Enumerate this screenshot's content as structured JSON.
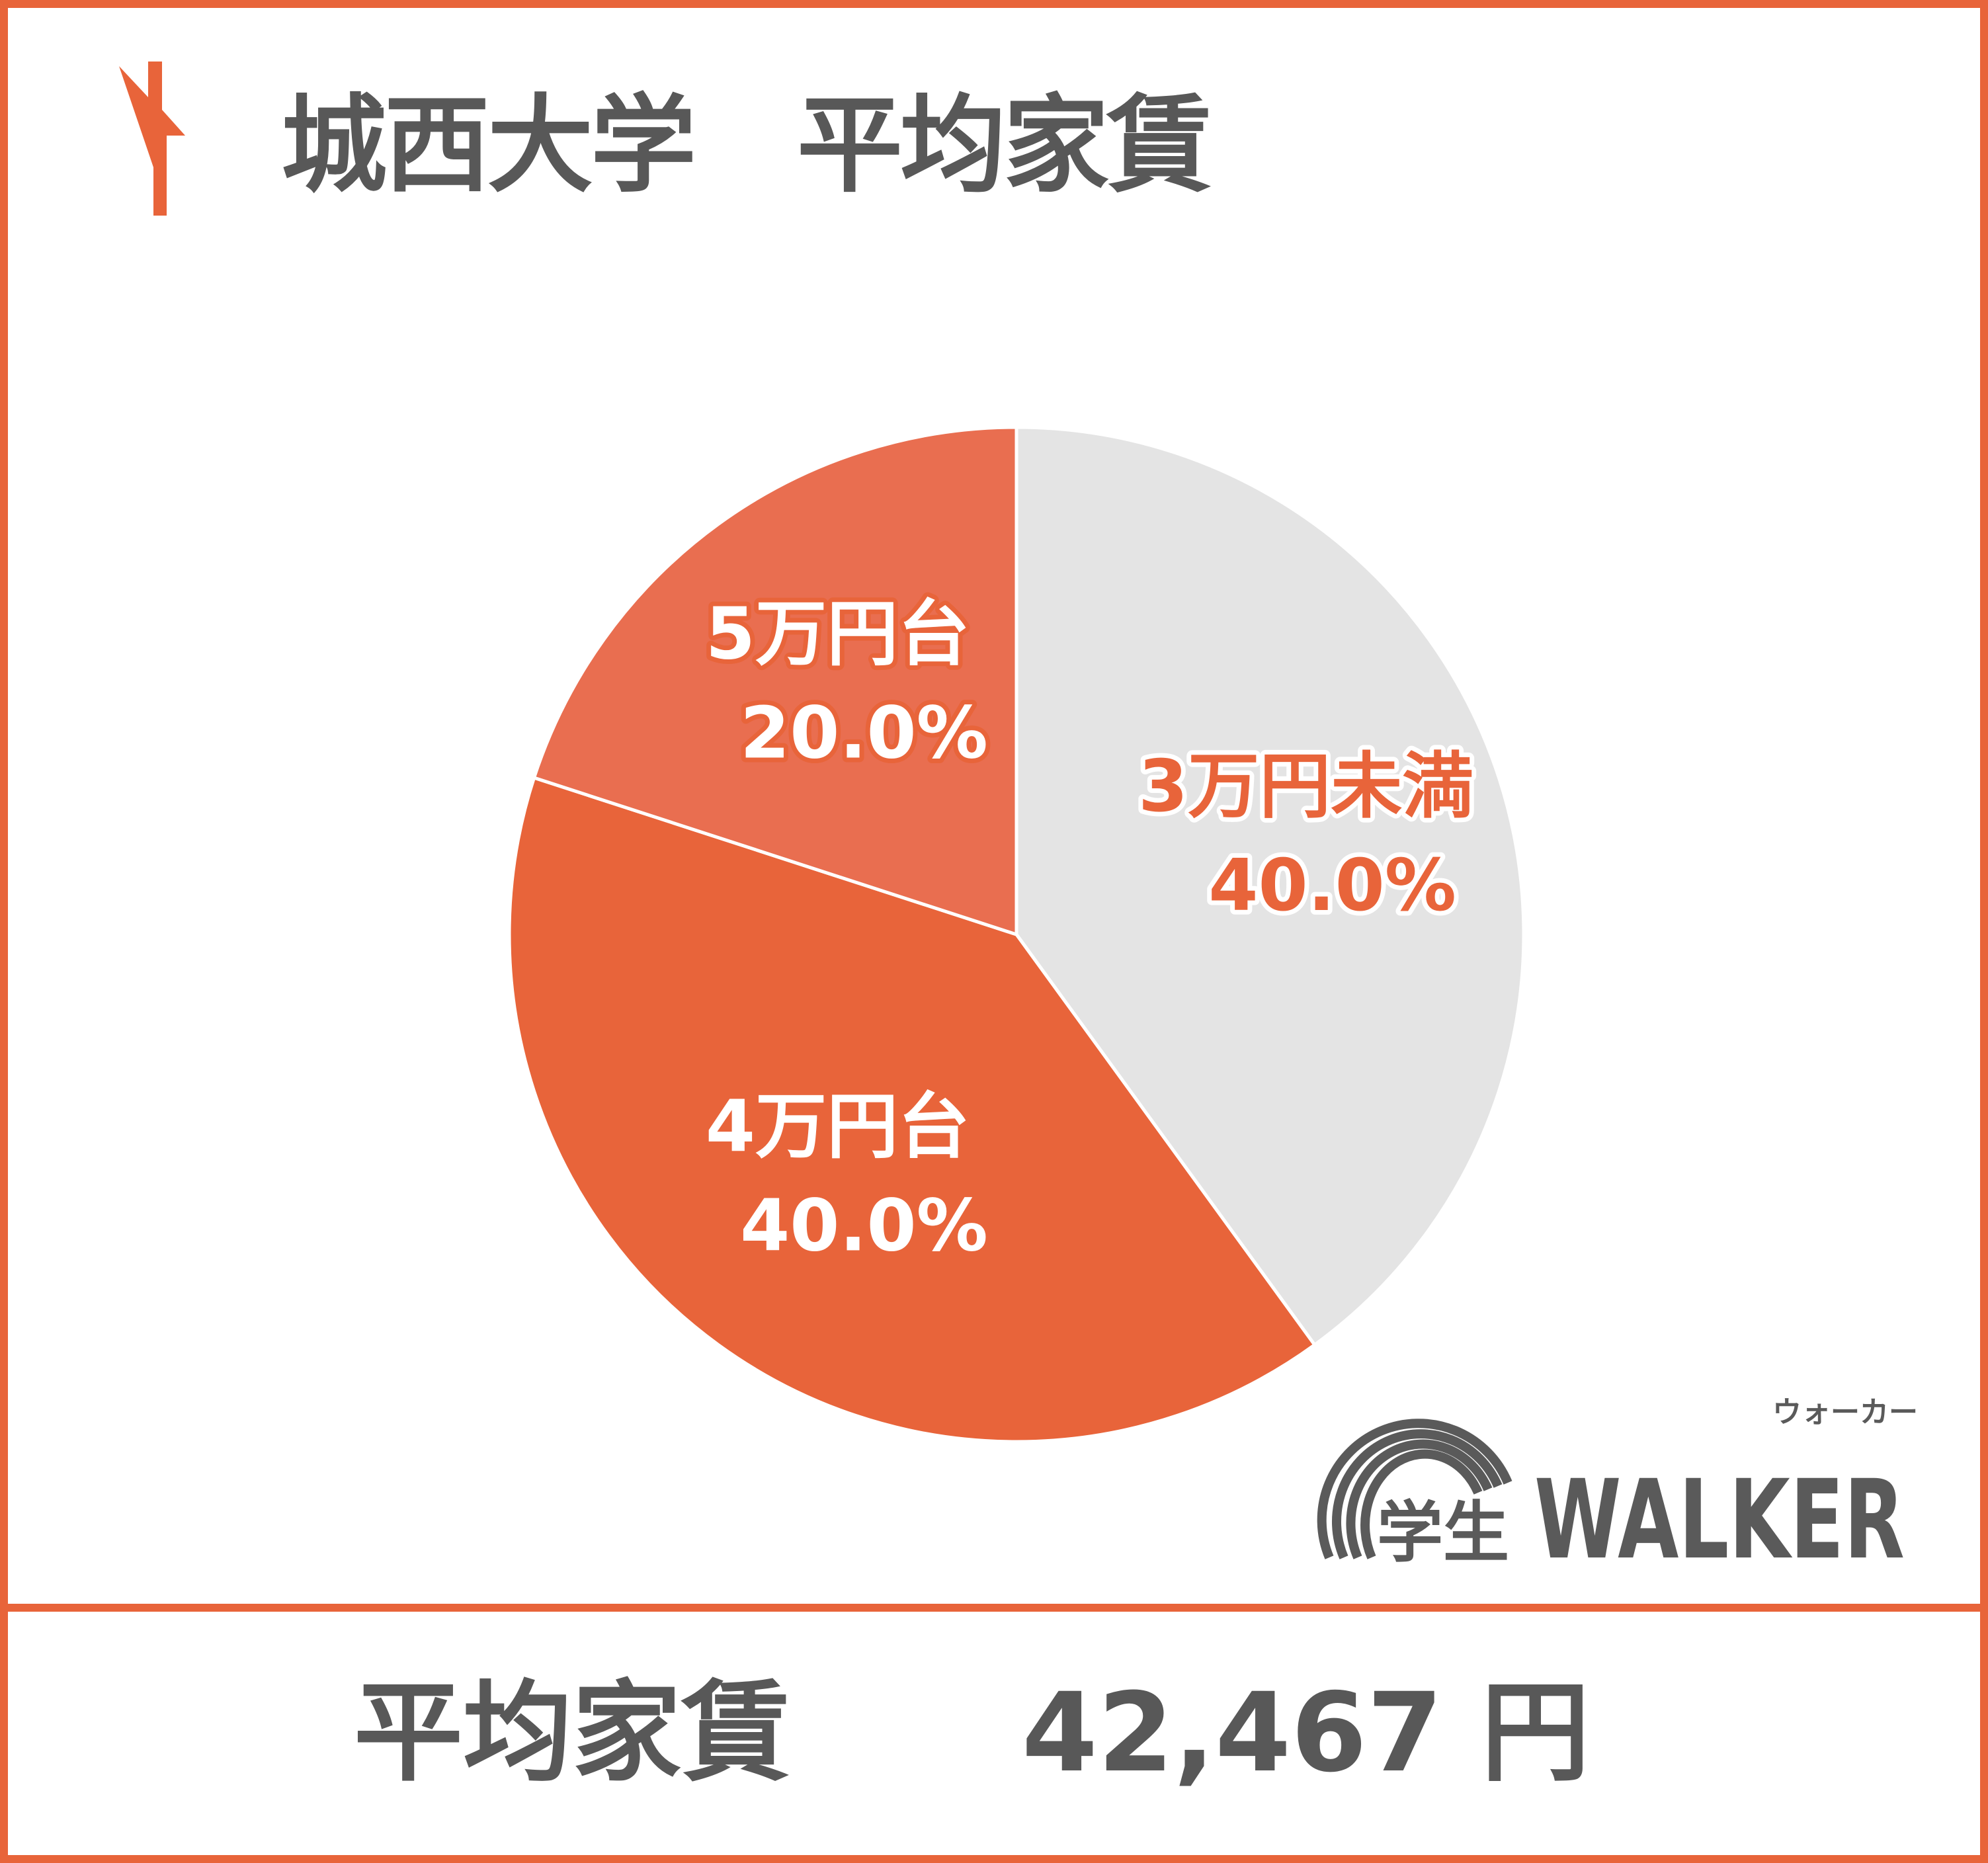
{
  "header": {
    "title": "城西大学　平均家賃",
    "icon": "house-icon"
  },
  "footer": {
    "label": "平均家賃",
    "value": "42,467 円"
  },
  "logo": {
    "text": "学生WALKER",
    "kana": "ウォーカー"
  },
  "colors": {
    "accent": "#E8643A",
    "light_accent": "#E96E50",
    "gray": "#E4E4E4",
    "text": "#585858"
  },
  "chart_data": {
    "type": "pie",
    "start": "top",
    "direction": "clockwise",
    "slices": [
      {
        "label": "3万円未満",
        "value": 40.0,
        "value_label": "40.0%",
        "color": "#E4E4E4",
        "text_color": "#E8643A",
        "outline": "#FFFFFF"
      },
      {
        "label": "4万円台",
        "value": 40.0,
        "value_label": "40.0%",
        "color": "#E8643A",
        "text_color": "#FFFFFF",
        "outline": "#E8643A"
      },
      {
        "label": "5万円台",
        "value": 20.0,
        "value_label": "20.0%",
        "color": "#E96E50",
        "text_color": "#FFFFFF",
        "outline": "#E8643A"
      }
    ]
  }
}
